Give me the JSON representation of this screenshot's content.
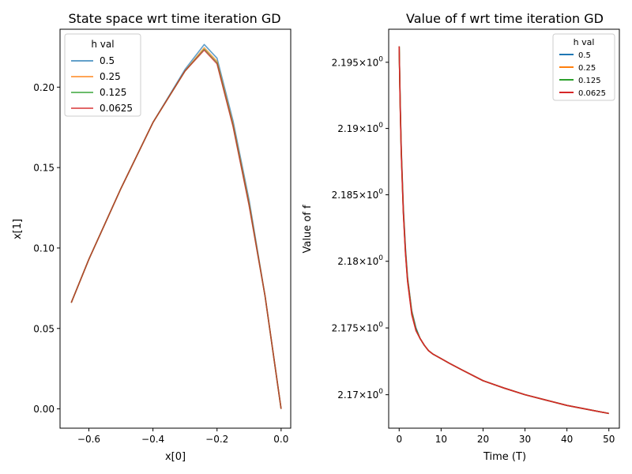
{
  "chart_data": [
    {
      "type": "line",
      "title": "State space wrt time iteration GD",
      "xlabel": "x[0]",
      "ylabel": "x[1]",
      "xlim": [
        -0.69,
        0.03
      ],
      "ylim": [
        -0.012,
        0.236
      ],
      "x_ticks": [
        -0.6,
        -0.4,
        -0.2,
        0.0
      ],
      "x_tick_labels": [
        "−0.6",
        "−0.4",
        "−0.2",
        "0.0"
      ],
      "y_ticks": [
        0.0,
        0.05,
        0.1,
        0.15,
        0.2
      ],
      "y_tick_labels": [
        "0.00",
        "0.05",
        "0.10",
        "0.15",
        "0.20"
      ],
      "grid": false,
      "legend": {
        "title": "h val",
        "placement": "top-left"
      },
      "series": [
        {
          "name": "0.5",
          "color": "#1f77b4",
          "x": [
            -0.655,
            -0.6,
            -0.5,
            -0.4,
            -0.3,
            -0.24,
            -0.2,
            -0.15,
            -0.1,
            -0.05,
            0.0
          ],
          "y": [
            0.066,
            0.093,
            0.137,
            0.178,
            0.211,
            0.2265,
            0.218,
            0.179,
            0.13,
            0.07,
            0.0
          ]
        },
        {
          "name": "0.25",
          "color": "#ff7f0e",
          "x": [
            -0.655,
            -0.6,
            -0.5,
            -0.4,
            -0.3,
            -0.24,
            -0.2,
            -0.15,
            -0.1,
            -0.05,
            0.0
          ],
          "y": [
            0.066,
            0.093,
            0.137,
            0.178,
            0.21,
            0.2245,
            0.216,
            0.177,
            0.128,
            0.07,
            0.0
          ]
        },
        {
          "name": "0.125",
          "color": "#2ca02c",
          "x": [
            -0.655,
            -0.6,
            -0.5,
            -0.4,
            -0.3,
            -0.24,
            -0.2,
            -0.15,
            -0.1,
            -0.05,
            0.0
          ],
          "y": [
            0.066,
            0.093,
            0.137,
            0.178,
            0.21,
            0.2235,
            0.215,
            0.176,
            0.127,
            0.07,
            0.0
          ]
        },
        {
          "name": "0.0625",
          "color": "#d62728",
          "x": [
            -0.655,
            -0.6,
            -0.5,
            -0.4,
            -0.3,
            -0.24,
            -0.2,
            -0.15,
            -0.1,
            -0.05,
            0.0
          ],
          "y": [
            0.066,
            0.093,
            0.137,
            0.178,
            0.21,
            0.223,
            0.2145,
            0.1755,
            0.1265,
            0.07,
            0.0
          ]
        }
      ]
    },
    {
      "type": "line",
      "title": "Value of f wrt time iteration GD",
      "xlabel": "Time (T)",
      "ylabel": "Value of f",
      "yscale": "log",
      "xlim": [
        -2.5,
        52.5
      ],
      "ylim": [
        2.1675,
        2.1975
      ],
      "x_ticks": [
        0,
        10,
        20,
        30,
        40,
        50
      ],
      "x_tick_labels": [
        "0",
        "10",
        "20",
        "30",
        "40",
        "50"
      ],
      "y_ticks": [
        2.17,
        2.175,
        2.18,
        2.185,
        2.19,
        2.195
      ],
      "y_tick_labels": [
        "2.17",
        "2.175",
        "2.18",
        "2.185",
        "2.19",
        "2.195"
      ],
      "y_tick_exponent": "0",
      "grid": false,
      "legend": {
        "title": "h val",
        "placement": "top-right"
      },
      "series": [
        {
          "name": "0.5",
          "color": "#1f77b4",
          "x": [
            0,
            0.25,
            0.5,
            1,
            1.5,
            2,
            3,
            4,
            5,
            6,
            7,
            8,
            10,
            12,
            15,
            20,
            25,
            30,
            35,
            40,
            45,
            50
          ],
          "y": [
            2.1962,
            2.192,
            2.1885,
            2.184,
            2.181,
            2.1788,
            2.1763,
            2.175,
            2.1742,
            2.1737,
            2.1733,
            2.17305,
            2.1727,
            2.17235,
            2.17185,
            2.17105,
            2.1705,
            2.17,
            2.1696,
            2.1692,
            2.1689,
            2.1686
          ]
        },
        {
          "name": "0.25",
          "color": "#ff7f0e",
          "x": [
            0,
            0.25,
            0.5,
            1,
            1.5,
            2,
            3,
            4,
            5,
            6,
            7,
            8,
            10,
            12,
            15,
            20,
            25,
            30,
            35,
            40,
            45,
            50
          ],
          "y": [
            2.1962,
            2.1918,
            2.1883,
            2.1838,
            2.1808,
            2.1787,
            2.1762,
            2.1749,
            2.1742,
            2.1737,
            2.1733,
            2.17305,
            2.1727,
            2.17235,
            2.17185,
            2.17105,
            2.1705,
            2.17,
            2.1696,
            2.1692,
            2.1689,
            2.1686
          ]
        },
        {
          "name": "0.125",
          "color": "#2ca02c",
          "x": [
            0,
            0.25,
            0.5,
            1,
            1.5,
            2,
            3,
            4,
            5,
            6,
            7,
            8,
            10,
            12,
            15,
            20,
            25,
            30,
            35,
            40,
            45,
            50
          ],
          "y": [
            2.1962,
            2.1917,
            2.1882,
            2.1837,
            2.1807,
            2.1786,
            2.1761,
            2.1749,
            2.1742,
            2.1737,
            2.1733,
            2.17305,
            2.1727,
            2.17235,
            2.17185,
            2.17105,
            2.1705,
            2.17,
            2.1696,
            2.1692,
            2.1689,
            2.1686
          ]
        },
        {
          "name": "0.0625",
          "color": "#d62728",
          "x": [
            0,
            0.25,
            0.5,
            1,
            1.5,
            2,
            3,
            4,
            5,
            6,
            7,
            8,
            10,
            12,
            15,
            20,
            25,
            30,
            35,
            40,
            45,
            50
          ],
          "y": [
            2.1962,
            2.1916,
            2.1881,
            2.1836,
            2.1806,
            2.1785,
            2.176,
            2.1748,
            2.1742,
            2.1737,
            2.1733,
            2.17305,
            2.1727,
            2.17235,
            2.17185,
            2.17105,
            2.1705,
            2.17,
            2.1696,
            2.1692,
            2.1689,
            2.1686
          ]
        }
      ]
    }
  ]
}
